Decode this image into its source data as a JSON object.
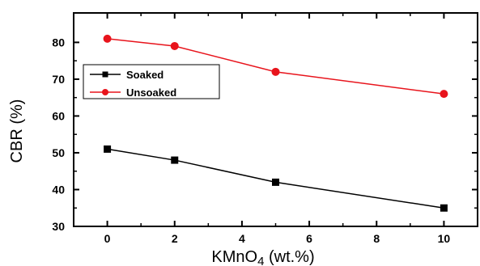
{
  "chart_data": {
    "type": "line",
    "title": "",
    "xlabel": "KMnO4 (wt.%)",
    "xlabel_parts": {
      "pre": "KMnO",
      "sub": "4",
      "post": " (wt.%)"
    },
    "ylabel": "CBR (%)",
    "xlim": [
      -1,
      11
    ],
    "ylim": [
      30,
      88
    ],
    "xticks": [
      0,
      2,
      4,
      6,
      8,
      10
    ],
    "yticks": [
      30,
      40,
      50,
      60,
      70,
      80
    ],
    "grid": false,
    "legend_position": "upper-left",
    "series": [
      {
        "name": "Soaked",
        "x": [
          0,
          2,
          5,
          10
        ],
        "y": [
          51,
          48,
          42,
          35
        ],
        "color": "#000000",
        "marker": "square"
      },
      {
        "name": "Unsoaked",
        "x": [
          0,
          2,
          5,
          10
        ],
        "y": [
          81,
          79,
          72,
          66
        ],
        "color": "#e8141c",
        "marker": "circle"
      }
    ]
  }
}
